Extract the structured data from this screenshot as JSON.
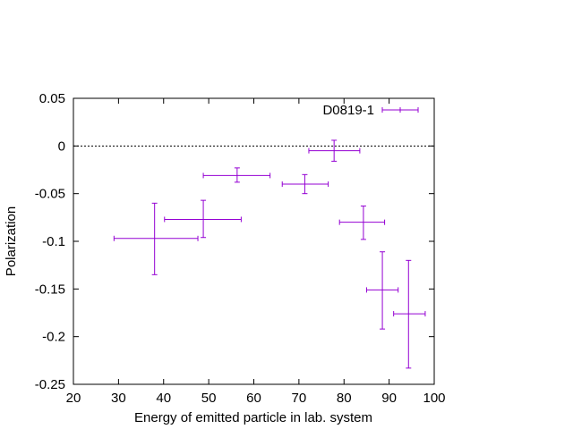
{
  "chart_data": {
    "type": "scatter",
    "title": "",
    "xlabel": "Energy of emitted particle in lab. system",
    "ylabel": "Polarization",
    "xlim": [
      20,
      100
    ],
    "ylim": [
      -0.25,
      0.05
    ],
    "xticks": [
      20,
      30,
      40,
      50,
      60,
      70,
      80,
      90,
      100
    ],
    "yticks": [
      0.05,
      0,
      -0.05,
      -0.1,
      -0.15,
      -0.2,
      -0.25
    ],
    "xtick_labels": [
      "20",
      "30",
      "40",
      "50",
      "60",
      "70",
      "80",
      "90",
      "100"
    ],
    "ytick_labels": [
      "0.05",
      "0",
      "-0.05",
      "-0.1",
      "-0.15",
      "-0.2",
      "-0.25"
    ],
    "grid": false,
    "legend_position": "top-right",
    "reference_line": {
      "y": 0,
      "style": "dotted"
    },
    "series": [
      {
        "name": "D0819-1",
        "color": "#9400d3",
        "points": [
          {
            "x": 38.0,
            "xlo": 29.0,
            "xhi": 47.6,
            "y": -0.097,
            "ylo": -0.135,
            "yhi": -0.06
          },
          {
            "x": 48.8,
            "xlo": 40.2,
            "xhi": 57.2,
            "y": -0.077,
            "ylo": -0.096,
            "yhi": -0.057
          },
          {
            "x": 56.3,
            "xlo": 48.8,
            "xhi": 63.6,
            "y": -0.031,
            "ylo": -0.038,
            "yhi": -0.023
          },
          {
            "x": 71.3,
            "xlo": 66.3,
            "xhi": 76.5,
            "y": -0.04,
            "ylo": -0.05,
            "yhi": -0.03
          },
          {
            "x": 77.8,
            "xlo": 72.2,
            "xhi": 83.5,
            "y": -0.005,
            "ylo": -0.016,
            "yhi": 0.006
          },
          {
            "x": 84.3,
            "xlo": 79.0,
            "xhi": 89.0,
            "y": -0.08,
            "ylo": -0.098,
            "yhi": -0.063
          },
          {
            "x": 88.5,
            "xlo": 85.0,
            "xhi": 92.0,
            "y": -0.151,
            "ylo": -0.192,
            "yhi": -0.111
          },
          {
            "x": 94.3,
            "xlo": 91.0,
            "xhi": 98.0,
            "y": -0.176,
            "ylo": -0.233,
            "yhi": -0.12
          }
        ]
      }
    ]
  }
}
